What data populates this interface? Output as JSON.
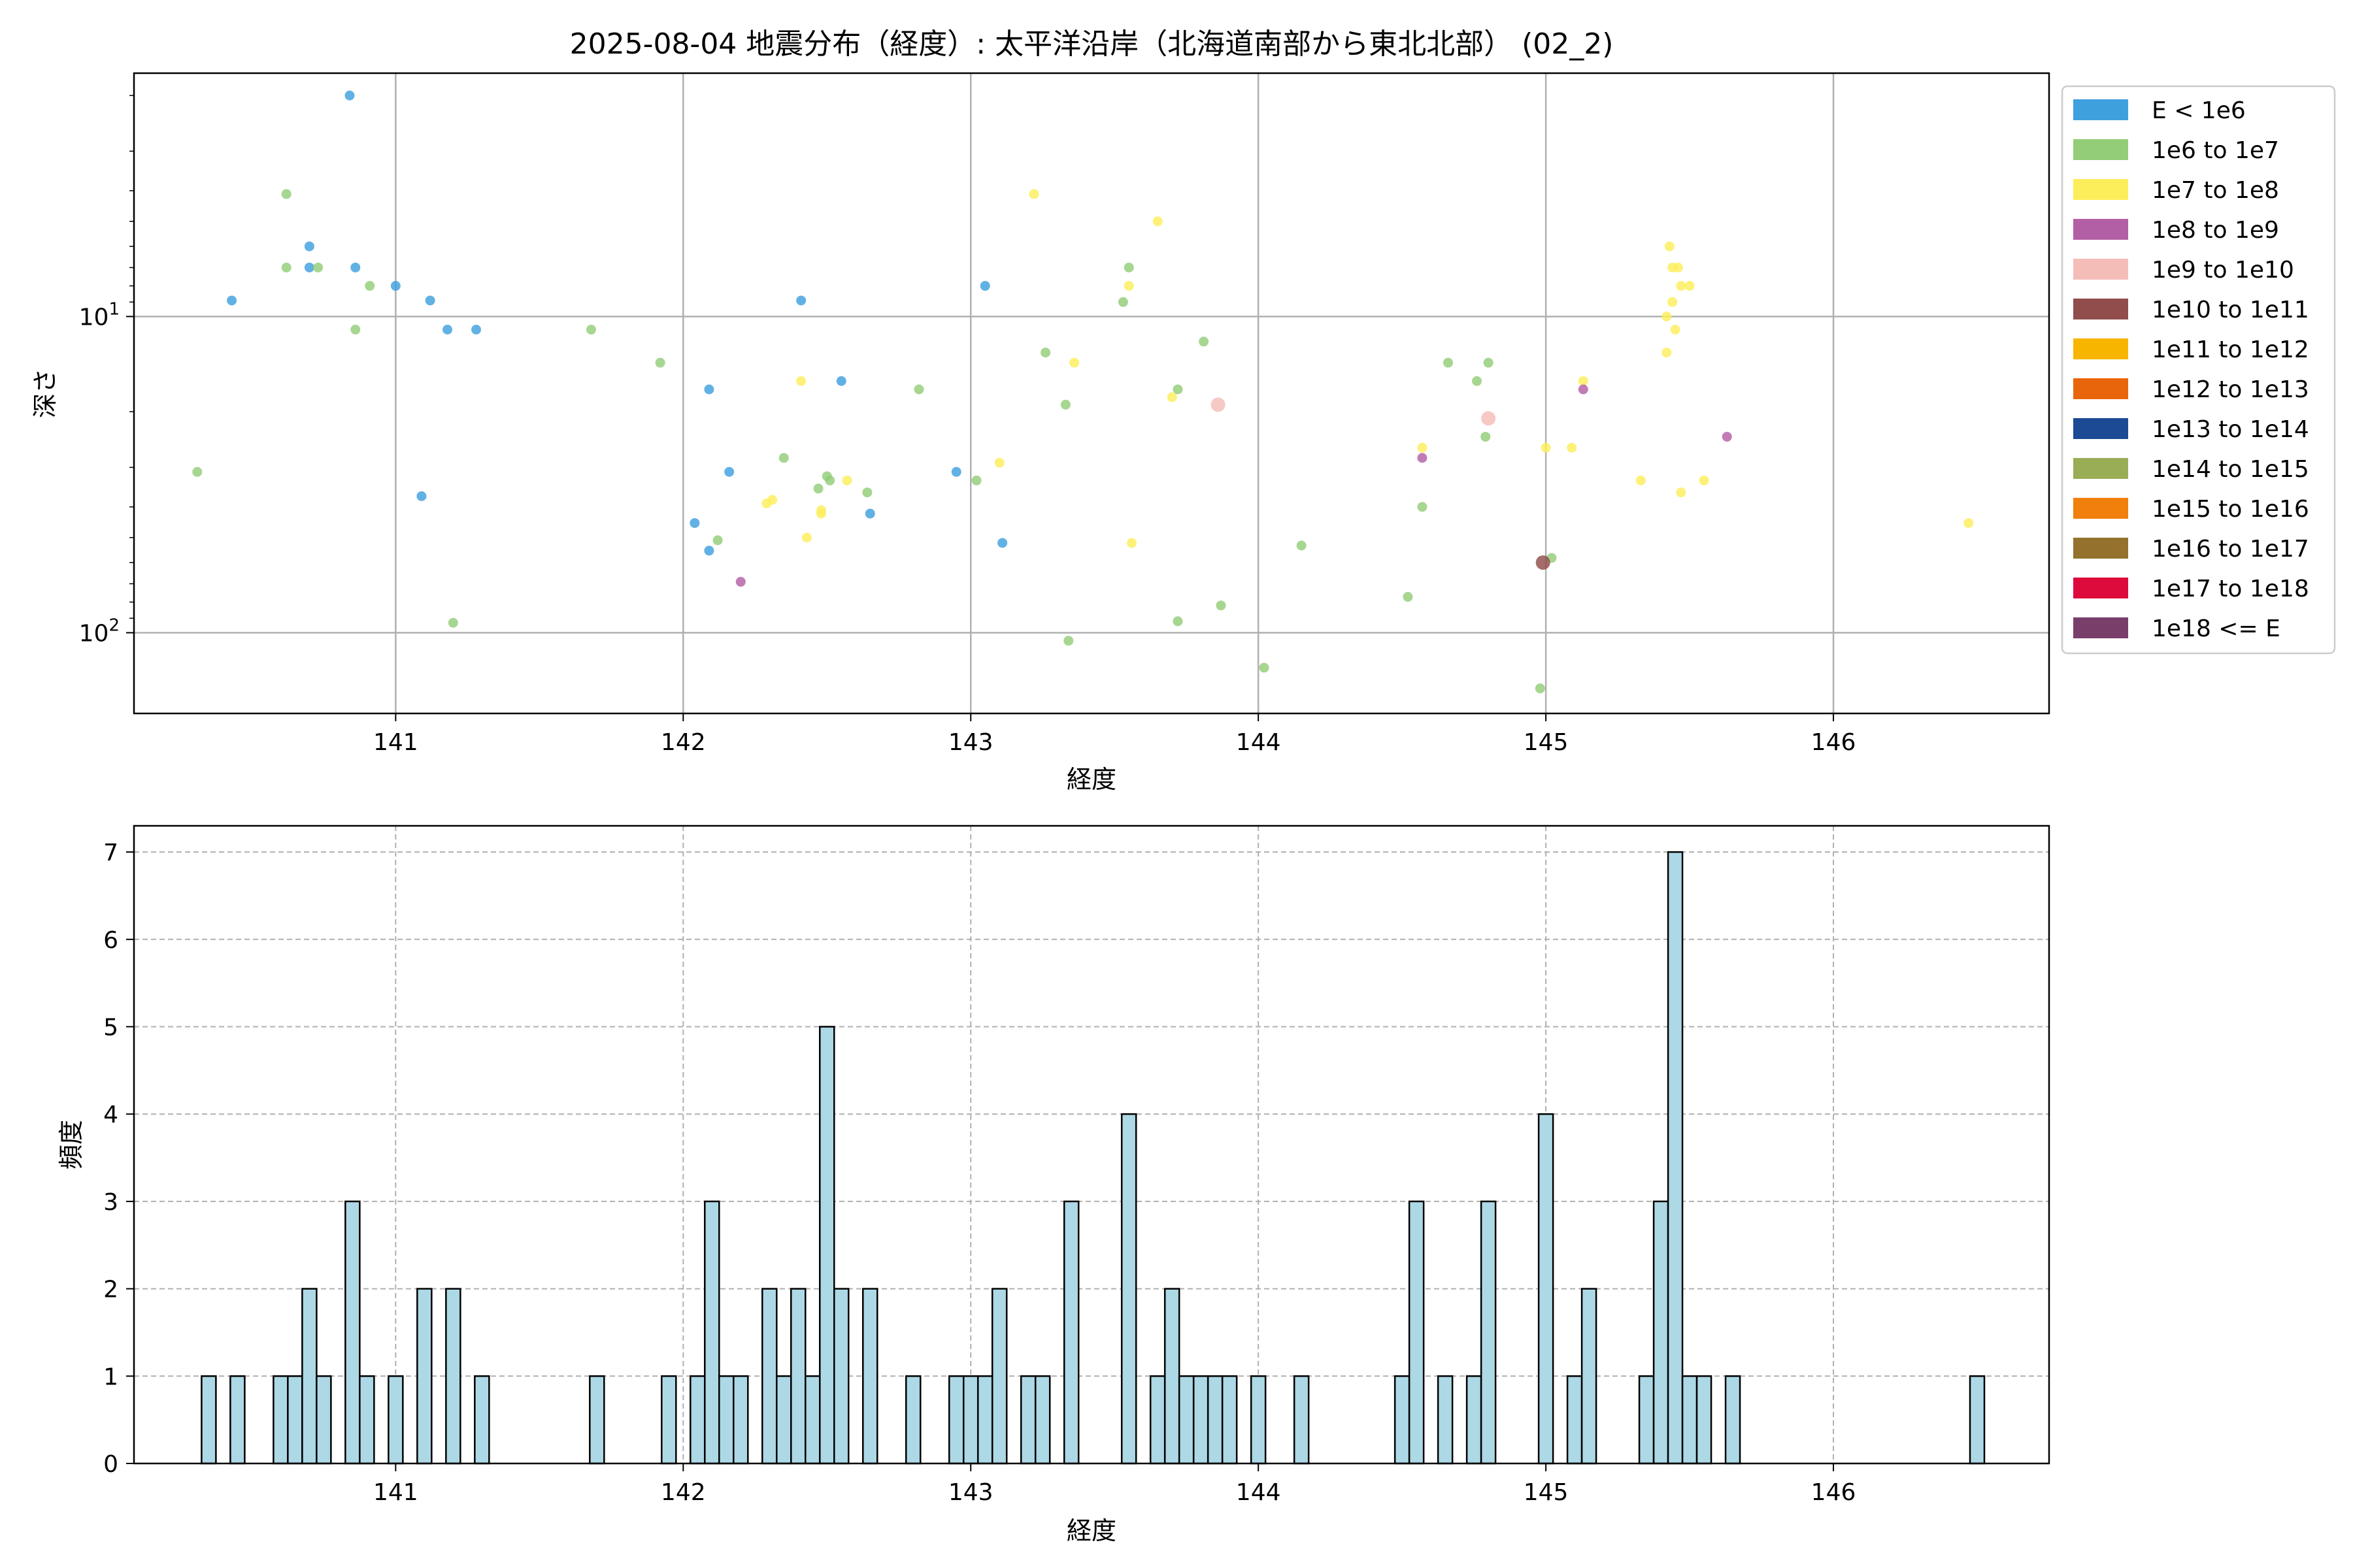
{
  "title": "2025-08-04 地震分布（経度）: 太平洋沿岸（北海道南部から東北北部） (02_2)",
  "scatter_panel": {
    "xlabel": "経度",
    "ylabel": "深さ"
  },
  "histogram_panel": {
    "xlabel": "経度",
    "ylabel": "頻度"
  },
  "legend": {
    "placement": "outside-right",
    "entries": [
      {
        "label": "E < 1e6",
        "color": "#3FA0DE"
      },
      {
        "label": "1e6 to 1e7",
        "color": "#93CD77"
      },
      {
        "label": "1e7 to 1e8",
        "color": "#FCEE5B"
      },
      {
        "label": "1e8 to 1e9",
        "color": "#B35FA5"
      },
      {
        "label": "1e9 to 1e10",
        "color": "#F4BDB8"
      },
      {
        "label": "1e10 to 1e11",
        "color": "#904D4B"
      },
      {
        "label": "1e11 to 1e12",
        "color": "#F7B500"
      },
      {
        "label": "1e12 to 1e13",
        "color": "#E8650B"
      },
      {
        "label": "1e13 to 1e14",
        "color": "#1C4A94"
      },
      {
        "label": "1e14 to 1e15",
        "color": "#99AD54"
      },
      {
        "label": "1e15 to 1e16",
        "color": "#F07F0B"
      },
      {
        "label": "1e16 to 1e17",
        "color": "#94712C"
      },
      {
        "label": "1e17 to 1e18",
        "color": "#DC0B3B"
      },
      {
        "label": "1e18 <= E",
        "color": "#7A3E6B"
      }
    ]
  },
  "chart_data": [
    {
      "type": "scatter",
      "xlabel": "経度",
      "ylabel": "深さ",
      "xlim": [
        140.09,
        146.75
      ],
      "ylim": [
        180,
        1.7
      ],
      "y_scale": "log",
      "y_inverted": true,
      "grid": true,
      "x_ticks": [
        "141",
        "142",
        "143",
        "144",
        "145",
        "146"
      ],
      "y_ticks": [
        {
          "value": 10,
          "base": "10",
          "exp": "1"
        },
        {
          "value": 100,
          "base": "10",
          "exp": "2"
        }
      ],
      "series": [
        {
          "name": "E < 1e6",
          "color": "#3FA0DE",
          "points": [
            [
              140.43,
              8.9
            ],
            [
              140.84,
              2.0
            ],
            [
              140.7,
              6.0
            ],
            [
              140.7,
              7.0
            ],
            [
              140.86,
              7.0
            ],
            [
              141.0,
              8.0
            ],
            [
              141.12,
              8.9
            ],
            [
              141.18,
              11.0
            ],
            [
              141.28,
              11.0
            ],
            [
              141.09,
              37.0
            ],
            [
              142.09,
              17.0
            ],
            [
              142.04,
              45.0
            ],
            [
              142.09,
              55.0
            ],
            [
              142.16,
              31.0
            ],
            [
              142.41,
              8.9
            ],
            [
              142.55,
              16.0
            ],
            [
              142.65,
              42.0
            ],
            [
              142.95,
              31.0
            ],
            [
              143.05,
              8.0
            ],
            [
              143.11,
              52.0
            ]
          ]
        },
        {
          "name": "1e6 to 1e7",
          "color": "#93CD77",
          "points": [
            [
              140.31,
              31.0
            ],
            [
              140.62,
              4.1
            ],
            [
              140.62,
              7.0
            ],
            [
              140.73,
              7.0
            ],
            [
              140.86,
              11.0
            ],
            [
              140.91,
              8.0
            ],
            [
              141.2,
              93.0
            ],
            [
              141.68,
              11.0
            ],
            [
              141.92,
              14.0
            ],
            [
              142.12,
              51.0
            ],
            [
              142.35,
              28.0
            ],
            [
              142.47,
              35.0
            ],
            [
              142.5,
              32.0
            ],
            [
              142.51,
              33.0
            ],
            [
              142.64,
              36.0
            ],
            [
              142.82,
              17.0
            ],
            [
              143.02,
              33.0
            ],
            [
              143.26,
              13.0
            ],
            [
              143.33,
              19.0
            ],
            [
              143.34,
              106.0
            ],
            [
              143.53,
              9.0
            ],
            [
              143.55,
              7.0
            ],
            [
              143.72,
              17.0
            ],
            [
              143.72,
              92.0
            ],
            [
              143.81,
              12.0
            ],
            [
              143.87,
              82.0
            ],
            [
              144.02,
              129.0
            ],
            [
              144.15,
              53.0
            ],
            [
              144.52,
              77.0
            ],
            [
              144.57,
              40.0
            ],
            [
              144.66,
              14.0
            ],
            [
              144.76,
              16.0
            ],
            [
              144.79,
              24.0
            ],
            [
              144.8,
              14.0
            ],
            [
              144.98,
              150.0
            ],
            [
              145.02,
              58.0
            ]
          ]
        },
        {
          "name": "1e7 to 1e8",
          "color": "#FCEE5B",
          "points": [
            [
              142.29,
              39.0
            ],
            [
              142.31,
              38.0
            ],
            [
              142.41,
              16.0
            ],
            [
              142.43,
              50.0
            ],
            [
              142.48,
              41.0
            ],
            [
              142.48,
              42.0
            ],
            [
              142.57,
              33.0
            ],
            [
              143.1,
              29.0
            ],
            [
              143.22,
              4.1
            ],
            [
              143.36,
              14.0
            ],
            [
              143.55,
              8.0
            ],
            [
              143.56,
              52.0
            ],
            [
              143.65,
              5.0
            ],
            [
              143.7,
              18.0
            ],
            [
              144.57,
              26.0
            ],
            [
              145.0,
              26.0
            ],
            [
              145.09,
              26.0
            ],
            [
              145.13,
              16.0
            ],
            [
              145.33,
              33.0
            ],
            [
              145.42,
              13.0
            ],
            [
              145.42,
              10.0
            ],
            [
              145.43,
              6.0
            ],
            [
              145.44,
              7.0
            ],
            [
              145.44,
              9.0
            ],
            [
              145.45,
              11.0
            ],
            [
              145.46,
              7.0
            ],
            [
              145.47,
              8.0
            ],
            [
              145.47,
              36.0
            ],
            [
              145.5,
              8.0
            ],
            [
              145.55,
              33.0
            ],
            [
              146.47,
              45.0
            ]
          ]
        },
        {
          "name": "1e8 to 1e9",
          "color": "#B35FA5",
          "points": [
            [
              142.2,
              69.0
            ],
            [
              144.57,
              28.0
            ],
            [
              145.13,
              17.0
            ],
            [
              145.63,
              24.0
            ]
          ]
        },
        {
          "name": "1e9 to 1e10",
          "color": "#F4BDB8",
          "points": [
            [
              143.86,
              19.0
            ],
            [
              144.8,
              21.0
            ]
          ]
        },
        {
          "name": "1e10 to 1e11",
          "color": "#904D4B",
          "points": [
            [
              144.99,
              60.0
            ]
          ]
        }
      ]
    },
    {
      "type": "bar",
      "title": "",
      "xlabel": "経度",
      "ylabel": "頻度",
      "xlim": [
        140.09,
        146.75
      ],
      "ylim": [
        0,
        7.3
      ],
      "bin_width": 0.05,
      "grid": true,
      "x_ticks": [
        "141",
        "142",
        "143",
        "144",
        "145",
        "146"
      ],
      "y_ticks": [
        "0",
        "1",
        "2",
        "3",
        "4",
        "5",
        "6",
        "7"
      ],
      "bars": [
        [
          140.35,
          1
        ],
        [
          140.45,
          1
        ],
        [
          140.6,
          1
        ],
        [
          140.65,
          1
        ],
        [
          140.7,
          2
        ],
        [
          140.75,
          1
        ],
        [
          140.85,
          3
        ],
        [
          140.9,
          1
        ],
        [
          141.0,
          1
        ],
        [
          141.1,
          2
        ],
        [
          141.2,
          2
        ],
        [
          141.3,
          1
        ],
        [
          141.7,
          1
        ],
        [
          141.95,
          1
        ],
        [
          142.05,
          1
        ],
        [
          142.1,
          3
        ],
        [
          142.15,
          1
        ],
        [
          142.2,
          1
        ],
        [
          142.3,
          2
        ],
        [
          142.35,
          1
        ],
        [
          142.4,
          2
        ],
        [
          142.45,
          1
        ],
        [
          142.5,
          5
        ],
        [
          142.55,
          2
        ],
        [
          142.65,
          2
        ],
        [
          142.8,
          1
        ],
        [
          142.95,
          1
        ],
        [
          143.0,
          1
        ],
        [
          143.05,
          1
        ],
        [
          143.1,
          2
        ],
        [
          143.2,
          1
        ],
        [
          143.25,
          1
        ],
        [
          143.35,
          3
        ],
        [
          143.55,
          4
        ],
        [
          143.65,
          1
        ],
        [
          143.7,
          2
        ],
        [
          143.75,
          1
        ],
        [
          143.8,
          1
        ],
        [
          143.85,
          1
        ],
        [
          143.9,
          1
        ],
        [
          144.0,
          1
        ],
        [
          144.15,
          1
        ],
        [
          144.5,
          1
        ],
        [
          144.55,
          3
        ],
        [
          144.65,
          1
        ],
        [
          144.75,
          1
        ],
        [
          144.8,
          3
        ],
        [
          145.0,
          4
        ],
        [
          145.1,
          1
        ],
        [
          145.15,
          2
        ],
        [
          145.35,
          1
        ],
        [
          145.4,
          3
        ],
        [
          145.45,
          7
        ],
        [
          145.5,
          1
        ],
        [
          145.55,
          1
        ],
        [
          145.65,
          1
        ],
        [
          146.5,
          1
        ]
      ]
    }
  ]
}
